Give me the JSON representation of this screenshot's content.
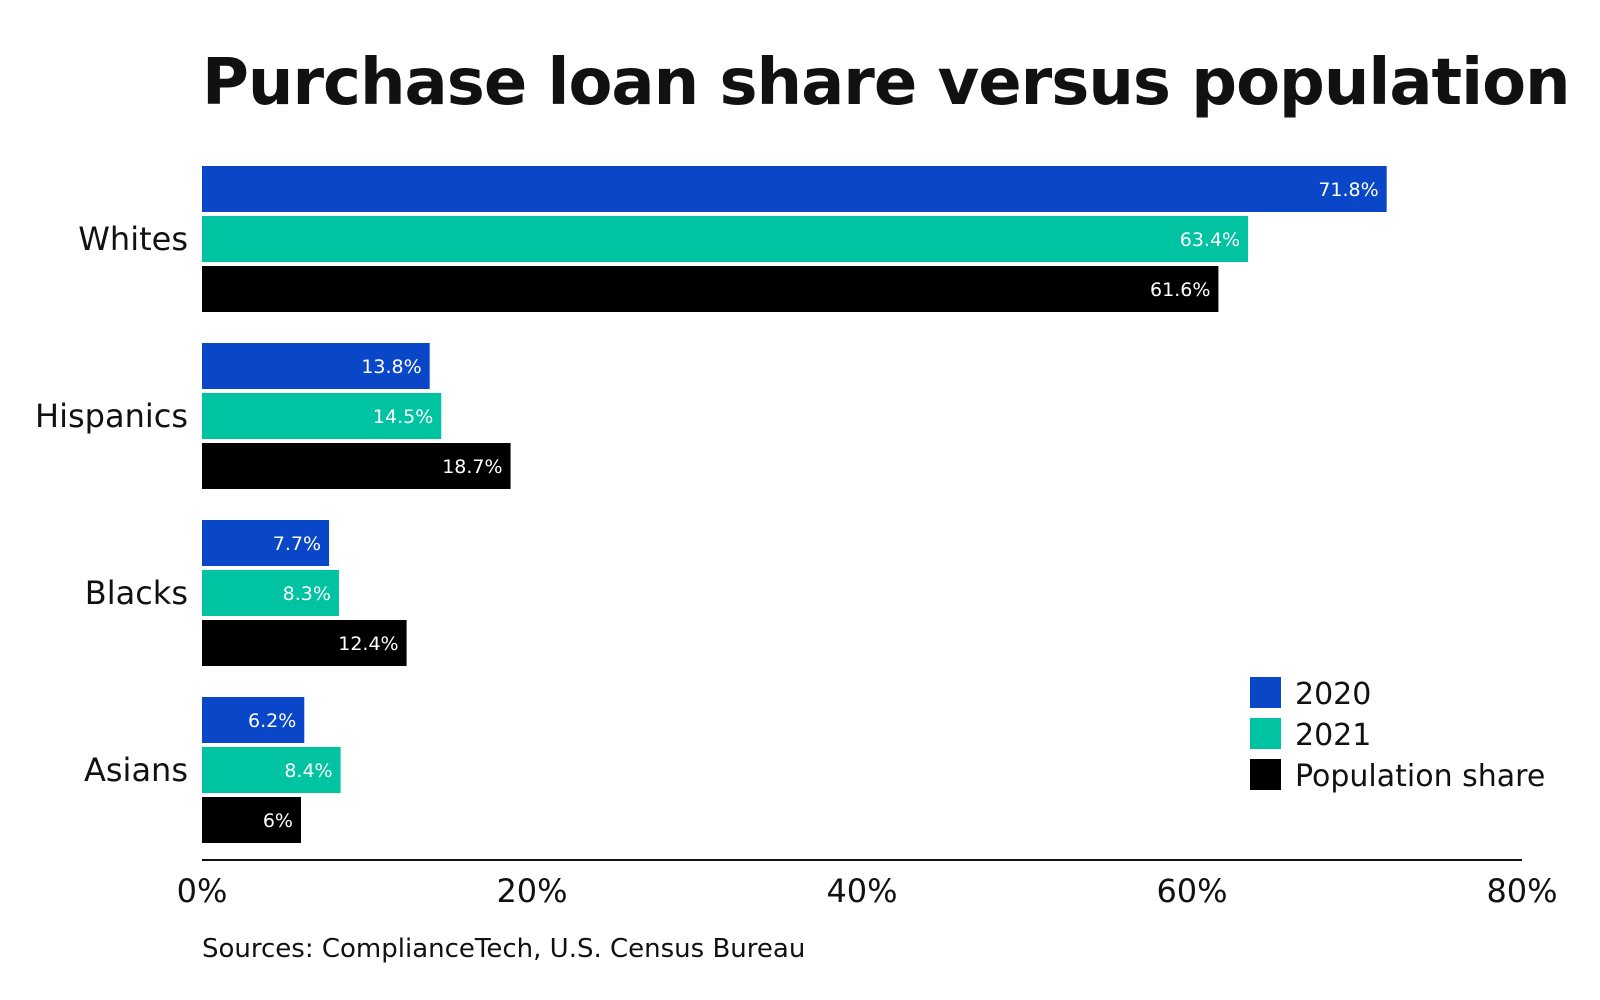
{
  "chart_data": {
    "type": "bar",
    "orientation": "horizontal",
    "title": "Purchase loan share versus population",
    "categories": [
      "Whites",
      "Hispanics",
      "Blacks",
      "Asians"
    ],
    "series": [
      {
        "name": "2020",
        "color": "#0a47c8",
        "values": [
          71.8,
          13.8,
          7.7,
          6.2
        ],
        "labels": [
          "71.8%",
          "13.8%",
          "7.7%",
          "6.2%"
        ]
      },
      {
        "name": "2021",
        "color": "#00c3a2",
        "values": [
          63.4,
          14.5,
          8.3,
          8.4
        ],
        "labels": [
          "63.4%",
          "14.5%",
          "8.3%",
          "8.4%"
        ]
      },
      {
        "name": "Population share",
        "color": "#000000",
        "values": [
          61.6,
          18.7,
          12.4,
          6.0
        ],
        "labels": [
          "61.6%",
          "18.7%",
          "12.4%",
          "6%"
        ]
      }
    ],
    "xlim": [
      0,
      80
    ],
    "xticks": [
      0,
      20,
      40,
      60,
      80
    ],
    "xtick_labels": [
      "0%",
      "20%",
      "40%",
      "60%",
      "80%"
    ],
    "xlabel": "",
    "ylabel": "",
    "grid": false,
    "legend_position": "bottom-right",
    "source": "Sources: ComplianceTech, U.S. Census Bureau"
  }
}
